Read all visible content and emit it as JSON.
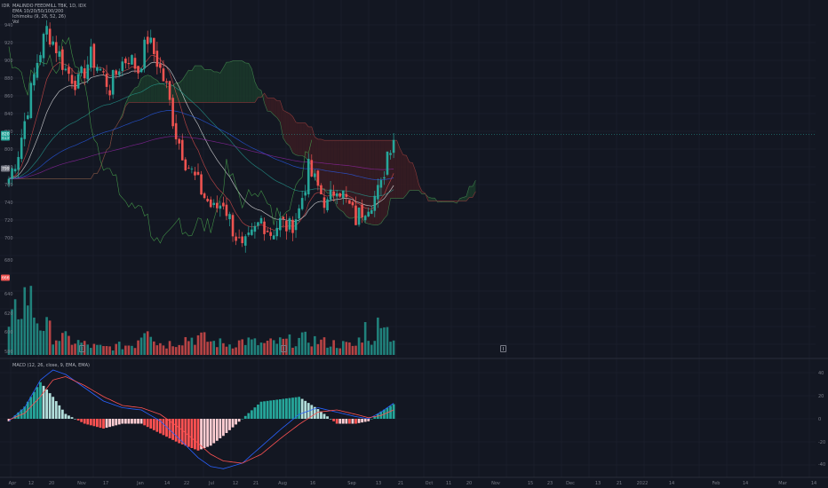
{
  "header": {
    "idr_label": "IDR",
    "symbol_line": "MALINDO FEEDMILL TBK, 1D, IDX",
    "indicators": [
      "EMA 10/20/50/100/200",
      "Ichimoku (9, 26, 52, 26)",
      "Vol"
    ],
    "macd_title": "MACD (12, 26, close, 9, EMA, EMA)"
  },
  "colors": {
    "background": "#131722",
    "up": "#26a69a",
    "down": "#ef5350",
    "grid": "#1e2230",
    "cloud_bull": "#1b3a2a",
    "cloud_bear": "#3a1c22",
    "macd_line": "#2962ff",
    "signal_line": "#ff5252",
    "axis_text": "#787b86"
  },
  "chart_data": {
    "type": "candlestick",
    "price_axis_ticks": [
      "940",
      "920",
      "900",
      "880",
      "860",
      "840",
      "820",
      "800",
      "780",
      "760",
      "740",
      "720",
      "700",
      "680",
      "640",
      "620",
      "600",
      "580"
    ],
    "price_badges": [
      {
        "label": "819",
        "type": "last"
      },
      {
        "label": "820",
        "type": "current"
      },
      {
        "label": "799",
        "type": "ema"
      },
      {
        "label": "666",
        "type": "volume"
      }
    ],
    "x_tick_labels": [
      "Apr",
      "12",
      "20",
      "Nov",
      "17",
      "Jan",
      "14",
      "22",
      "Jul",
      "12",
      "21",
      "Aug",
      "16",
      "Sep",
      "13",
      "21",
      "Oct",
      "11",
      "20",
      "Nov",
      "15",
      "23",
      "Dec",
      "13",
      "21",
      "2022",
      "14",
      "Feb",
      "14",
      "Mar",
      "14"
    ],
    "ohlc_keyframes": [
      {
        "x": 0,
        "c": 770
      },
      {
        "x": 3,
        "c": 800
      },
      {
        "x": 6,
        "c": 850
      },
      {
        "x": 9,
        "c": 900
      },
      {
        "x": 12,
        "c": 935
      },
      {
        "x": 15,
        "c": 915
      },
      {
        "x": 18,
        "c": 890
      },
      {
        "x": 22,
        "c": 875
      },
      {
        "x": 26,
        "c": 905
      },
      {
        "x": 29,
        "c": 890
      },
      {
        "x": 32,
        "c": 870
      },
      {
        "x": 35,
        "c": 895
      },
      {
        "x": 38,
        "c": 905
      },
      {
        "x": 41,
        "c": 890
      },
      {
        "x": 44,
        "c": 925
      },
      {
        "x": 47,
        "c": 900
      },
      {
        "x": 50,
        "c": 870
      },
      {
        "x": 53,
        "c": 820
      },
      {
        "x": 56,
        "c": 790
      },
      {
        "x": 59,
        "c": 770
      },
      {
        "x": 62,
        "c": 750
      },
      {
        "x": 65,
        "c": 735
      },
      {
        "x": 68,
        "c": 745
      },
      {
        "x": 71,
        "c": 715
      },
      {
        "x": 74,
        "c": 690
      },
      {
        "x": 77,
        "c": 705
      },
      {
        "x": 80,
        "c": 725
      },
      {
        "x": 83,
        "c": 710
      },
      {
        "x": 86,
        "c": 722
      },
      {
        "x": 89,
        "c": 715
      },
      {
        "x": 92,
        "c": 735
      },
      {
        "x": 95,
        "c": 780
      },
      {
        "x": 98,
        "c": 760
      },
      {
        "x": 101,
        "c": 740
      },
      {
        "x": 104,
        "c": 765
      },
      {
        "x": 107,
        "c": 745
      },
      {
        "x": 110,
        "c": 725
      },
      {
        "x": 113,
        "c": 740
      },
      {
        "x": 116,
        "c": 750
      },
      {
        "x": 118,
        "c": 760
      },
      {
        "x": 120,
        "c": 800
      },
      {
        "x": 122,
        "c": 818
      }
    ],
    "volume_keyframes": [
      {
        "x": 0,
        "v": 25
      },
      {
        "x": 3,
        "v": 55
      },
      {
        "x": 6,
        "v": 70
      },
      {
        "x": 9,
        "v": 40
      },
      {
        "x": 12,
        "v": 30
      },
      {
        "x": 15,
        "v": 20
      },
      {
        "x": 18,
        "v": 18
      },
      {
        "x": 22,
        "v": 14
      },
      {
        "x": 26,
        "v": 10
      },
      {
        "x": 30,
        "v": 8
      },
      {
        "x": 35,
        "v": 10
      },
      {
        "x": 40,
        "v": 12
      },
      {
        "x": 44,
        "v": 40
      },
      {
        "x": 47,
        "v": 14
      },
      {
        "x": 50,
        "v": 12
      },
      {
        "x": 55,
        "v": 18
      },
      {
        "x": 60,
        "v": 20
      },
      {
        "x": 65,
        "v": 14
      },
      {
        "x": 70,
        "v": 12
      },
      {
        "x": 75,
        "v": 16
      },
      {
        "x": 80,
        "v": 12
      },
      {
        "x": 85,
        "v": 14
      },
      {
        "x": 90,
        "v": 16
      },
      {
        "x": 95,
        "v": 18
      },
      {
        "x": 100,
        "v": 14
      },
      {
        "x": 105,
        "v": 12
      },
      {
        "x": 110,
        "v": 10
      },
      {
        "x": 113,
        "v": 30
      },
      {
        "x": 116,
        "v": 12
      },
      {
        "x": 118,
        "v": 60
      },
      {
        "x": 120,
        "v": 28
      },
      {
        "x": 122,
        "v": 20
      }
    ],
    "macd_axis_ticks": [
      "40",
      "20",
      "0",
      "-20",
      "-40"
    ],
    "macd_keyframes": [
      {
        "x": 0,
        "m": -2,
        "s": -1
      },
      {
        "x": 5,
        "m": 10,
        "s": 5
      },
      {
        "x": 10,
        "m": 35,
        "s": 20
      },
      {
        "x": 14,
        "m": 44,
        "s": 35
      },
      {
        "x": 18,
        "m": 40,
        "s": 38
      },
      {
        "x": 24,
        "m": 28,
        "s": 30
      },
      {
        "x": 30,
        "m": 16,
        "s": 20
      },
      {
        "x": 36,
        "m": 10,
        "s": 12
      },
      {
        "x": 42,
        "m": 8,
        "s": 10
      },
      {
        "x": 48,
        "m": -2,
        "s": 4
      },
      {
        "x": 54,
        "m": -18,
        "s": -8
      },
      {
        "x": 60,
        "m": -35,
        "s": -22
      },
      {
        "x": 64,
        "m": -43,
        "s": -32
      },
      {
        "x": 68,
        "m": -45,
        "s": -38
      },
      {
        "x": 74,
        "m": -40,
        "s": -40
      },
      {
        "x": 80,
        "m": -25,
        "s": -32
      },
      {
        "x": 86,
        "m": -10,
        "s": -18
      },
      {
        "x": 92,
        "m": 4,
        "s": -5
      },
      {
        "x": 98,
        "m": 10,
        "s": 6
      },
      {
        "x": 104,
        "m": 6,
        "s": 8
      },
      {
        "x": 110,
        "m": 2,
        "s": 4
      },
      {
        "x": 114,
        "m": 0,
        "s": 1
      },
      {
        "x": 118,
        "m": 6,
        "s": 3
      },
      {
        "x": 122,
        "m": 14,
        "s": 8
      }
    ]
  }
}
